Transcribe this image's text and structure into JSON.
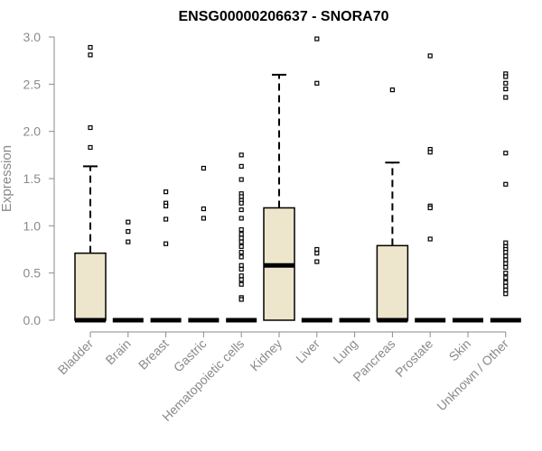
{
  "chart_data": {
    "type": "box",
    "title": "ENSG00000206637 - SNORA70",
    "xlabel": "",
    "ylabel": "Expression",
    "ylim": [
      0,
      3.0
    ],
    "yticks": [
      "0.0",
      "0.5",
      "1.0",
      "1.5",
      "2.0",
      "2.5",
      "3.0"
    ],
    "grid": false,
    "box_fill": "#ede6cc",
    "categories": [
      "Bladder",
      "Brain",
      "Breast",
      "Gastric",
      "Hematopoietic cells",
      "Kidney",
      "Liver",
      "Lung",
      "Pancreas",
      "Prostate",
      "Skin",
      "Unknown / Other"
    ],
    "boxes": [
      {
        "q1": 0,
        "median": 0,
        "q3": 0.71,
        "whisker_low": 0,
        "whisker_high": 1.63,
        "outliers": [
          2.89,
          2.81,
          2.04,
          1.83
        ]
      },
      {
        "q1": 0,
        "median": 0,
        "q3": 0,
        "whisker_low": 0,
        "whisker_high": 0,
        "outliers": [
          1.04,
          0.94,
          0.83
        ]
      },
      {
        "q1": 0,
        "median": 0,
        "q3": 0,
        "whisker_low": 0,
        "whisker_high": 0,
        "outliers": [
          1.36,
          1.24,
          1.21,
          1.07,
          0.81
        ]
      },
      {
        "q1": 0,
        "median": 0,
        "q3": 0,
        "whisker_low": 0,
        "whisker_high": 0,
        "outliers": [
          1.61,
          1.18,
          1.08
        ]
      },
      {
        "q1": 0,
        "median": 0,
        "q3": 0,
        "whisker_low": 0,
        "whisker_high": 0,
        "outliers": [
          1.75,
          1.63,
          1.49,
          1.34,
          1.31,
          1.27,
          1.24,
          1.17,
          1.08,
          0.96,
          0.91,
          0.87,
          0.83,
          0.78,
          0.72,
          0.67,
          0.58,
          0.54,
          0.47,
          0.43,
          0.38,
          0.24,
          0.22
        ]
      },
      {
        "q1": 0,
        "median": 0.58,
        "q3": 1.19,
        "whisker_low": 0,
        "whisker_high": 2.6,
        "outliers": []
      },
      {
        "q1": 0,
        "median": 0,
        "q3": 0,
        "whisker_low": 0,
        "whisker_high": 0,
        "outliers": [
          2.98,
          2.51,
          0.75,
          0.71,
          0.62
        ]
      },
      {
        "q1": 0,
        "median": 0,
        "q3": 0,
        "whisker_low": 0,
        "whisker_high": 0,
        "outliers": []
      },
      {
        "q1": 0,
        "median": 0,
        "q3": 0.79,
        "whisker_low": 0,
        "whisker_high": 1.67,
        "outliers": [
          2.44
        ]
      },
      {
        "q1": 0,
        "median": 0,
        "q3": 0,
        "whisker_low": 0,
        "whisker_high": 0,
        "outliers": [
          2.8,
          1.81,
          1.78,
          1.21,
          1.19,
          0.86
        ]
      },
      {
        "q1": 0,
        "median": 0,
        "q3": 0,
        "whisker_low": 0,
        "whisker_high": 0,
        "outliers": []
      },
      {
        "q1": 0,
        "median": 0,
        "q3": 0,
        "whisker_low": 0,
        "whisker_high": 0,
        "outliers": [
          2.61,
          2.58,
          2.51,
          2.45,
          2.36,
          1.77,
          1.44,
          0.82,
          0.78,
          0.75,
          0.72,
          0.68,
          0.64,
          0.6,
          0.56,
          0.5,
          0.45,
          0.4,
          0.36,
          0.32,
          0.28
        ]
      }
    ]
  }
}
